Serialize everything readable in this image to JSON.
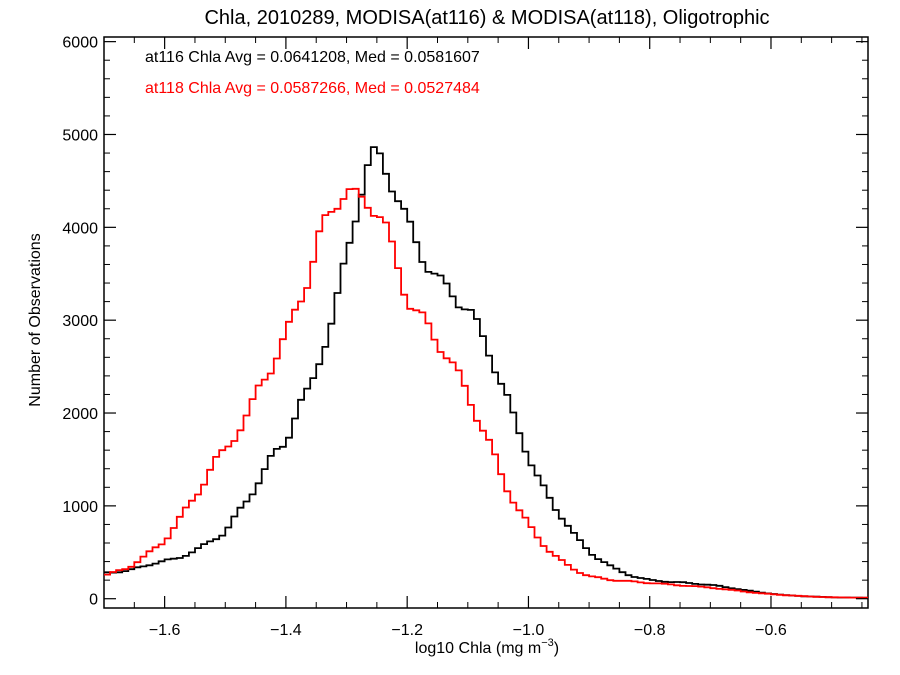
{
  "chart_data": {
    "type": "line",
    "step": true,
    "title": "Chla, 2010289, MODISA(at116) & MODISA(at118), Oligotrophic",
    "xlabel": "log10 Chla (mg m",
    "xlabel_sup": "−3",
    "xlabel_close": ")",
    "ylabel": "Number of Observations",
    "xlim": [
      -1.7,
      -0.44
    ],
    "ylim": [
      -100,
      6050
    ],
    "xticks": [
      -1.6,
      -1.4,
      -1.2,
      -1.0,
      -0.8,
      -0.6
    ],
    "xtick_labels": [
      "−1.6",
      "−1.4",
      "−1.2",
      "−1.0",
      "−0.8",
      "−0.6"
    ],
    "yticks": [
      0,
      1000,
      2000,
      3000,
      4000,
      5000,
      6000
    ],
    "ytick_labels": [
      "0",
      "1000",
      "2000",
      "3000",
      "4000",
      "5000",
      "6000"
    ],
    "annotations": [
      {
        "text": "at116 Chla Avg = 0.0641208, Med = 0.0581607",
        "color": "#000000"
      },
      {
        "text": "at118 Chla Avg = 0.0587266, Med = 0.0527484",
        "color": "#ff0000"
      }
    ],
    "series": [
      {
        "color": "#000000",
        "x": [
          -1.7,
          -1.66,
          -1.62,
          -1.58,
          -1.54,
          -1.5,
          -1.46,
          -1.42,
          -1.4,
          -1.38,
          -1.36,
          -1.34,
          -1.32,
          -1.3,
          -1.28,
          -1.26,
          -1.25,
          -1.24,
          -1.22,
          -1.2,
          -1.18,
          -1.16,
          -1.14,
          -1.12,
          -1.1,
          -1.08,
          -1.06,
          -1.04,
          -1.02,
          -1.0,
          -0.98,
          -0.96,
          -0.94,
          -0.92,
          -0.9,
          -0.88,
          -0.86,
          -0.84,
          -0.82,
          -0.8,
          -0.78,
          -0.76,
          -0.74,
          -0.72,
          -0.7,
          -0.66,
          -0.62,
          -0.58,
          -0.54,
          -0.5,
          -0.44
        ],
        "y": [
          280,
          300,
          380,
          430,
          550,
          720,
          1100,
          1550,
          1700,
          2050,
          2250,
          2700,
          3050,
          3700,
          4300,
          4750,
          4800,
          4700,
          4400,
          4050,
          3750,
          3550,
          3350,
          3250,
          3150,
          2850,
          2600,
          2250,
          1850,
          1550,
          1250,
          1000,
          850,
          650,
          500,
          420,
          330,
          270,
          230,
          200,
          190,
          180,
          170,
          160,
          150,
          110,
          70,
          40,
          25,
          15,
          10
        ]
      },
      {
        "color": "#ff0000",
        "x": [
          -1.7,
          -1.66,
          -1.62,
          -1.6,
          -1.58,
          -1.56,
          -1.54,
          -1.52,
          -1.5,
          -1.48,
          -1.46,
          -1.44,
          -1.42,
          -1.4,
          -1.38,
          -1.36,
          -1.34,
          -1.32,
          -1.3,
          -1.28,
          -1.26,
          -1.24,
          -1.22,
          -1.2,
          -1.18,
          -1.16,
          -1.14,
          -1.12,
          -1.1,
          -1.08,
          -1.06,
          -1.04,
          -1.02,
          -1.0,
          -0.98,
          -0.96,
          -0.94,
          -0.92,
          -0.9,
          -0.86,
          -0.82,
          -0.78,
          -0.74,
          -0.7,
          -0.66,
          -0.62,
          -0.58,
          -0.54,
          -0.5,
          -0.44
        ],
        "y": [
          250,
          330,
          520,
          620,
          820,
          1000,
          1200,
          1450,
          1600,
          1800,
          2000,
          2350,
          2550,
          2800,
          3200,
          3500,
          4000,
          4250,
          4400,
          4300,
          4250,
          4100,
          3650,
          3250,
          3050,
          2850,
          2700,
          2450,
          2200,
          1900,
          1600,
          1250,
          1000,
          800,
          620,
          480,
          380,
          300,
          240,
          200,
          180,
          160,
          140,
          120,
          90,
          60,
          40,
          25,
          15,
          10
        ]
      }
    ]
  }
}
